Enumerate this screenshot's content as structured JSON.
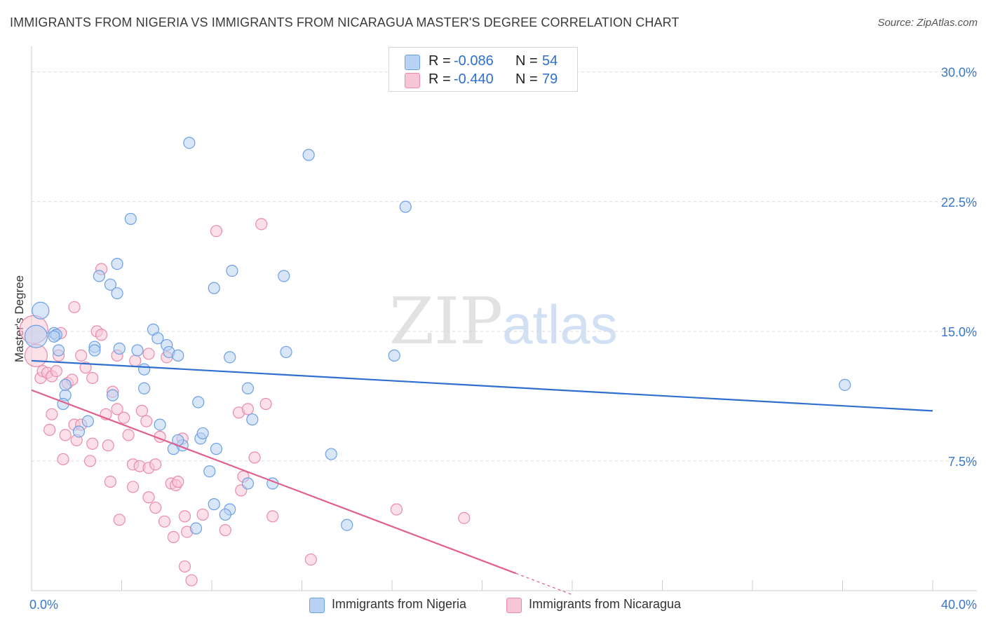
{
  "title": "IMMIGRANTS FROM NIGERIA VS IMMIGRANTS FROM NICARAGUA MASTER'S DEGREE CORRELATION CHART",
  "source": "Source: ZipAtlas.com",
  "watermark": {
    "zip": "ZIP",
    "atlas": "atlas"
  },
  "colors": {
    "nigeria": "#6aa0e6",
    "nigeria_fill": "#b9d2f3",
    "nigeria_line": "#2f6fcf",
    "nicaragua": "#ea8aab",
    "nicaragua_fill": "#f7c6d6",
    "nicaragua_line": "#e05f8e",
    "tick": "#3a76c9",
    "grid": "#d9d9d9"
  },
  "legend": {
    "rows": [
      {
        "r_label": "R = ",
        "r_value": "-0.086",
        "n_label": "N = ",
        "n_value": "54",
        "series": "nigeria"
      },
      {
        "r_label": "R = ",
        "r_value": "-0.440",
        "n_label": "N = ",
        "n_value": "79",
        "series": "nicaragua"
      }
    ]
  },
  "chart_data": {
    "type": "scatter",
    "title": "IMMIGRANTS FROM NIGERIA VS IMMIGRANTS FROM NICARAGUA MASTER'S DEGREE CORRELATION CHART",
    "xlabel": "",
    "ylabel": "Master's Degree",
    "xlim": [
      0,
      40
    ],
    "ylim": [
      0,
      31
    ],
    "x_tick_labels": [
      "0.0%",
      "40.0%"
    ],
    "y_ticks": [
      7.5,
      15.0,
      22.5,
      30.0
    ],
    "y_tick_labels": [
      "7.5%",
      "15.0%",
      "22.5%",
      "30.0%"
    ],
    "grid": true,
    "legend_position": "top-center",
    "series": [
      {
        "name": "Immigrants from Nigeria",
        "color_key": "nigeria",
        "trend": {
          "x0": 0,
          "y0": 13.3,
          "x1": 40,
          "y1": 10.4
        },
        "points": [
          [
            0.2,
            14.7,
            3
          ],
          [
            0.4,
            16.2,
            2
          ],
          [
            1.0,
            14.9,
            1
          ],
          [
            1.1,
            14.8,
            1
          ],
          [
            1.2,
            13.9,
            1
          ],
          [
            1.0,
            14.7,
            1
          ],
          [
            1.5,
            11.3,
            1
          ],
          [
            1.4,
            10.8,
            1
          ],
          [
            1.5,
            11.9,
            1
          ],
          [
            2.1,
            9.2,
            1
          ],
          [
            2.5,
            9.8,
            1
          ],
          [
            2.8,
            14.1,
            1
          ],
          [
            2.8,
            13.9,
            1
          ],
          [
            3.0,
            18.2,
            1
          ],
          [
            3.5,
            17.7,
            1
          ],
          [
            3.8,
            17.2,
            1
          ],
          [
            3.8,
            18.9,
            1
          ],
          [
            3.6,
            11.3,
            1
          ],
          [
            3.9,
            14.0,
            1
          ],
          [
            4.4,
            21.5,
            1
          ],
          [
            4.7,
            13.9,
            1
          ],
          [
            5.0,
            12.8,
            1
          ],
          [
            5.0,
            11.7,
            1
          ],
          [
            5.4,
            15.1,
            1
          ],
          [
            5.6,
            14.6,
            1
          ],
          [
            5.7,
            9.6,
            1
          ],
          [
            6.0,
            14.2,
            1
          ],
          [
            6.1,
            13.8,
            1
          ],
          [
            6.3,
            8.2,
            1
          ],
          [
            6.5,
            13.6,
            1
          ],
          [
            6.7,
            8.4,
            1
          ],
          [
            6.5,
            8.7,
            1
          ],
          [
            7.0,
            25.9,
            1
          ],
          [
            7.3,
            3.6,
            1
          ],
          [
            7.4,
            10.9,
            1
          ],
          [
            7.5,
            8.8,
            1
          ],
          [
            7.6,
            9.1,
            1
          ],
          [
            7.9,
            6.9,
            1
          ],
          [
            8.1,
            5.0,
            1
          ],
          [
            8.1,
            17.5,
            1
          ],
          [
            8.2,
            8.2,
            1
          ],
          [
            8.8,
            13.5,
            1
          ],
          [
            8.8,
            4.7,
            1
          ],
          [
            8.6,
            4.4,
            1
          ],
          [
            8.9,
            18.5,
            1
          ],
          [
            9.6,
            6.2,
            1
          ],
          [
            9.6,
            11.7,
            1
          ],
          [
            9.8,
            9.9,
            1
          ],
          [
            10.7,
            6.2,
            1
          ],
          [
            11.2,
            18.2,
            1
          ],
          [
            11.3,
            13.8,
            1
          ],
          [
            12.3,
            25.2,
            1
          ],
          [
            13.3,
            7.9,
            1
          ],
          [
            14.0,
            3.8,
            1
          ],
          [
            16.1,
            13.6,
            1
          ],
          [
            16.6,
            22.2,
            1
          ],
          [
            36.1,
            11.9,
            1
          ]
        ]
      },
      {
        "name": "Immigrants from Nicaragua",
        "color_key": "nicaragua",
        "trend": {
          "x0": 0,
          "y0": 11.6,
          "x1": 21.5,
          "y1": 1.0,
          "dash_to_x": 24.0
        },
        "points": [
          [
            0.1,
            15.1,
            4
          ],
          [
            0.2,
            13.6,
            3
          ],
          [
            0.4,
            12.3,
            1
          ],
          [
            0.5,
            12.7,
            1
          ],
          [
            0.7,
            12.6,
            1
          ],
          [
            0.8,
            9.3,
            1
          ],
          [
            0.9,
            12.4,
            1
          ],
          [
            0.9,
            10.2,
            1
          ],
          [
            1.1,
            12.7,
            1
          ],
          [
            1.2,
            13.6,
            1
          ],
          [
            1.3,
            14.9,
            1
          ],
          [
            1.4,
            7.6,
            1
          ],
          [
            1.5,
            9.0,
            1
          ],
          [
            1.6,
            12.0,
            1
          ],
          [
            1.9,
            9.6,
            1
          ],
          [
            1.8,
            12.2,
            1
          ],
          [
            1.9,
            16.4,
            1
          ],
          [
            2.0,
            8.7,
            1
          ],
          [
            2.2,
            9.6,
            1
          ],
          [
            2.2,
            13.6,
            1
          ],
          [
            2.4,
            12.9,
            1
          ],
          [
            2.6,
            7.5,
            1
          ],
          [
            2.7,
            8.5,
            1
          ],
          [
            2.7,
            12.3,
            1
          ],
          [
            2.9,
            15.0,
            1
          ],
          [
            3.1,
            14.8,
            1
          ],
          [
            3.3,
            10.2,
            1
          ],
          [
            3.4,
            8.4,
            1
          ],
          [
            3.5,
            6.3,
            1
          ],
          [
            3.6,
            11.5,
            1
          ],
          [
            3.8,
            10.5,
            1
          ],
          [
            3.8,
            13.6,
            1
          ],
          [
            3.9,
            4.1,
            1
          ],
          [
            4.1,
            10.0,
            1
          ],
          [
            4.3,
            9.0,
            1
          ],
          [
            4.5,
            6.0,
            1
          ],
          [
            4.5,
            7.3,
            1
          ],
          [
            4.6,
            13.3,
            1
          ],
          [
            4.8,
            7.2,
            1
          ],
          [
            4.9,
            10.4,
            1
          ],
          [
            5.1,
            9.8,
            1
          ],
          [
            5.2,
            13.7,
            1
          ],
          [
            5.2,
            5.4,
            1
          ],
          [
            5.2,
            7.1,
            1
          ],
          [
            5.5,
            7.3,
            1
          ],
          [
            5.5,
            4.8,
            1
          ],
          [
            5.7,
            8.9,
            1
          ],
          [
            5.9,
            4.0,
            1
          ],
          [
            6.0,
            13.5,
            1
          ],
          [
            6.2,
            6.2,
            1
          ],
          [
            6.3,
            3.1,
            1
          ],
          [
            6.4,
            6.1,
            1
          ],
          [
            6.5,
            6.3,
            1
          ],
          [
            6.7,
            8.8,
            1
          ],
          [
            6.8,
            1.4,
            1
          ],
          [
            6.8,
            4.3,
            1
          ],
          [
            6.9,
            3.4,
            1
          ],
          [
            7.1,
            0.6,
            1
          ],
          [
            7.6,
            4.4,
            1
          ],
          [
            8.2,
            20.8,
            1
          ],
          [
            8.6,
            3.5,
            1
          ],
          [
            9.2,
            10.3,
            1
          ],
          [
            9.3,
            5.8,
            1
          ],
          [
            9.4,
            6.6,
            1
          ],
          [
            9.6,
            10.5,
            1
          ],
          [
            9.9,
            7.7,
            1
          ],
          [
            10.2,
            21.2,
            1
          ],
          [
            10.4,
            10.8,
            1
          ],
          [
            10.7,
            4.3,
            1
          ],
          [
            12.4,
            1.8,
            1
          ],
          [
            16.2,
            4.7,
            1
          ],
          [
            19.2,
            4.2,
            1
          ],
          [
            3.1,
            18.6,
            1
          ]
        ]
      }
    ]
  },
  "bottom_legend": {
    "nigeria_label": "Immigrants from Nigeria",
    "nicaragua_label": "Immigrants from Nicaragua"
  }
}
